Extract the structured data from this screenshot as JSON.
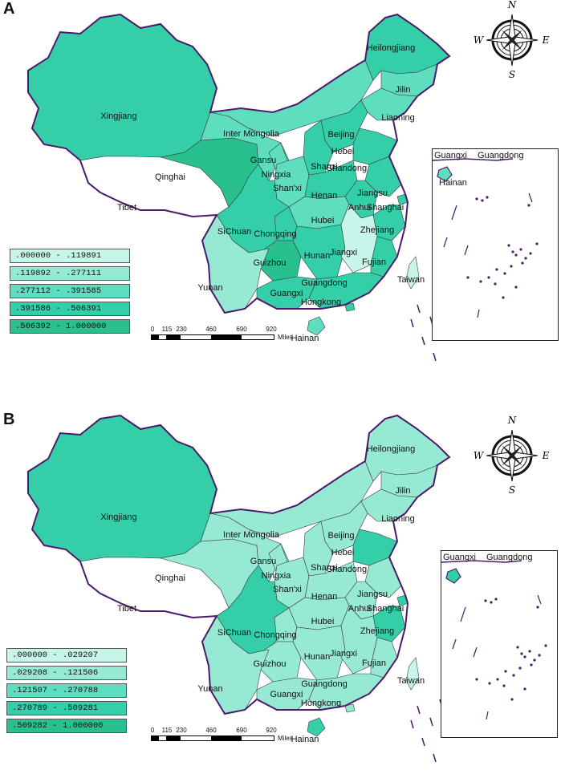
{
  "panels": [
    {
      "letter": "A",
      "legend": [
        {
          "range": ".000000 - .119891",
          "color": "#c8f5ea"
        },
        {
          "range": ".119892 - .277111",
          "color": "#96ead4"
        },
        {
          "range": ".277112 - .391585",
          "color": "#5fddbf"
        },
        {
          "range": ".391586 - .506391",
          "color": "#34cfa8"
        },
        {
          "range": ".506392 - 1.000000",
          "color": "#28c08f"
        }
      ],
      "regions": {
        "Xingjiang": 3,
        "Tibet": -1,
        "Qinghai": 4,
        "Gansu": 2,
        "Inter Mongolia": 2,
        "Heilongjiang": 3,
        "Jilin": 2,
        "Liaoning": 2,
        "Beijing": 3,
        "Hebei": 3,
        "Shanxi": 3,
        "Shandong": 3,
        "Ningxia": 2,
        "Shan'xi": 2,
        "Henan": 3,
        "Jiangsu": 3,
        "Anhui": 3,
        "Shanghai": 3,
        "Hubei": 2,
        "Zhejiang": 3,
        "SiChuan": 3,
        "Chongqing": 3,
        "Guizhou": 4,
        "Hunan": 3,
        "Jiangxi": 0,
        "Fujian": 3,
        "Yunan": 1,
        "Guangxi": 3,
        "Guangdong": 3,
        "Hongkong": 3,
        "Taiwan": 0,
        "Hainan": 2
      }
    },
    {
      "letter": "B",
      "legend": [
        {
          "range": ".000000 - .029207",
          "color": "#c8f5ea"
        },
        {
          "range": ".029208 - .121506",
          "color": "#96ead4"
        },
        {
          "range": ".121507 - .270788",
          "color": "#5fddbf"
        },
        {
          "range": ".270789 - .509281",
          "color": "#34cfa8"
        },
        {
          "range": ".509282 - 1.000000",
          "color": "#28c08f"
        }
      ],
      "regions": {
        "Xingjiang": 3,
        "Tibet": -1,
        "Qinghai": 1,
        "Gansu": 1,
        "Inter Mongolia": 1,
        "Heilongjiang": 1,
        "Jilin": 1,
        "Liaoning": 1,
        "Beijing": 3,
        "Hebei": 1,
        "Shanxi": 1,
        "Shandong": 3,
        "Ningxia": 1,
        "Shan'xi": 1,
        "Henan": 1,
        "Jiangsu": 1,
        "Anhui": 1,
        "Shanghai": 3,
        "Hubei": 1,
        "Zhejiang": 3,
        "SiChuan": 3,
        "Chongqing": 1,
        "Guizhou": 1,
        "Hunan": 1,
        "Jiangxi": 1,
        "Fujian": 1,
        "Yunan": 1,
        "Guangxi": 1,
        "Guangdong": 1,
        "Hongkong": 1,
        "Taiwan": 0,
        "Hainan": 3
      }
    }
  ],
  "scale": {
    "ticks": [
      "0",
      "115",
      "230",
      "460",
      "690",
      "920"
    ],
    "units": "Miles"
  },
  "inset": {
    "top_left": "Guangxi",
    "top_right": "Guangdong",
    "island": "Hainan"
  },
  "compass": {
    "n": "N",
    "s": "S",
    "e": "E",
    "w": "W"
  },
  "colors": {
    "border": "#4b1a6b",
    "outline": "#333333"
  }
}
